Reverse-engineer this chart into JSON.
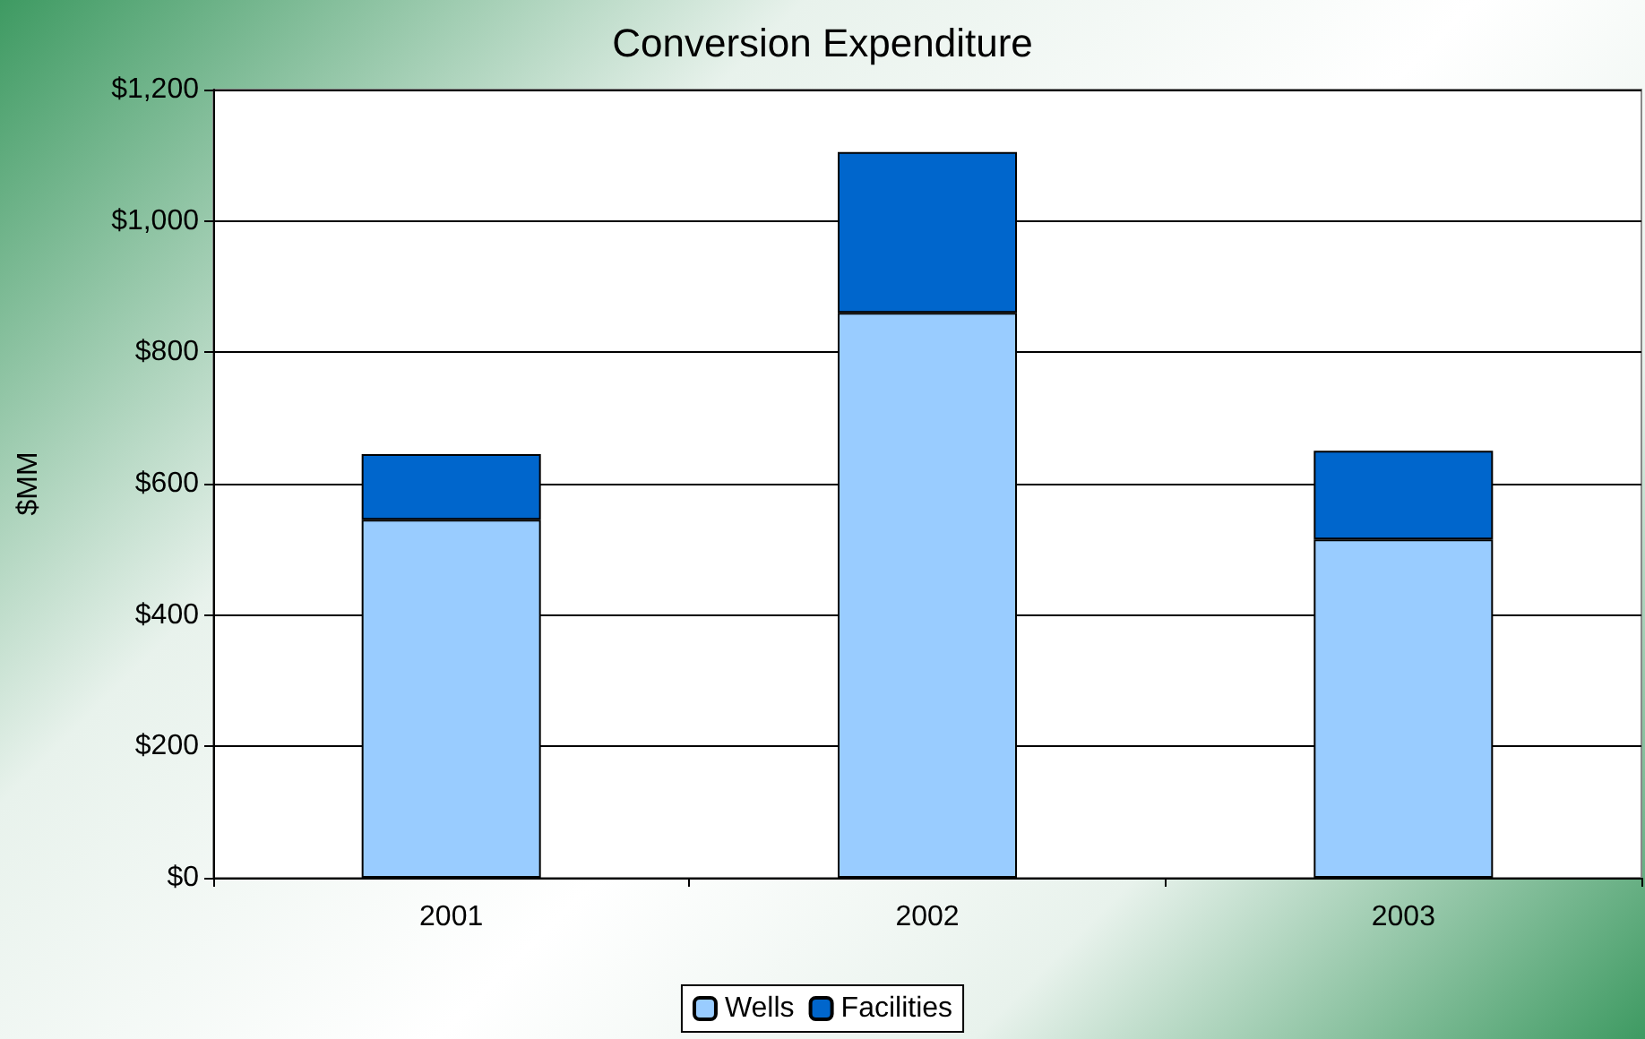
{
  "chart_data": {
    "type": "bar",
    "title": "Conversion Expenditure",
    "ylabel": "$MM",
    "categories": [
      "2001",
      "2002",
      "2003"
    ],
    "stacked": true,
    "series": [
      {
        "name": "Wells",
        "color": "#99ccff",
        "values": [
          545,
          860,
          515
        ]
      },
      {
        "name": "Facilities",
        "color": "#0066cc",
        "values": [
          100,
          245,
          135
        ]
      }
    ],
    "ylim": [
      0,
      1200
    ],
    "yticks": [
      {
        "value": 0,
        "label": "$0"
      },
      {
        "value": 200,
        "label": "$200"
      },
      {
        "value": 400,
        "label": "$400"
      },
      {
        "value": 600,
        "label": "$600"
      },
      {
        "value": 800,
        "label": "$800"
      },
      {
        "value": 1000,
        "label": "$1,000"
      },
      {
        "value": 1200,
        "label": "$1,200"
      }
    ],
    "grid": "y",
    "legend": "bottom"
  }
}
